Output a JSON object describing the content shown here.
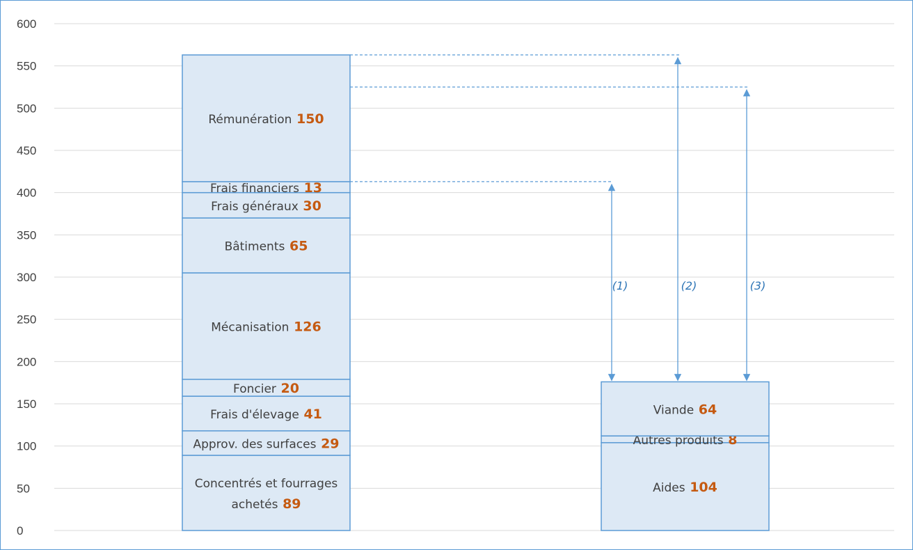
{
  "chart_data": {
    "type": "bar",
    "subtype": "stacked",
    "ylim": [
      0,
      600
    ],
    "yticks": [
      0,
      50,
      100,
      150,
      200,
      250,
      300,
      350,
      400,
      450,
      500,
      550,
      600
    ],
    "grid": true,
    "title": "",
    "xlabel": "",
    "ylabel": "",
    "colors": {
      "fill": "#dde9f5",
      "stroke": "#5b9bd5",
      "value": "#c55a11",
      "grid": "#d9d9d9",
      "arrow": "#5b9bd5"
    },
    "stacks": [
      {
        "segments": [
          {
            "label": [
              "Concentrés et fourrages",
              "achetés"
            ],
            "value": 89
          },
          {
            "label": [
              "Approv. des surfaces"
            ],
            "value": 29
          },
          {
            "label": [
              "Frais d'élevage"
            ],
            "value": 41
          },
          {
            "label": [
              "Foncier"
            ],
            "value": 20
          },
          {
            "label": [
              "Mécanisation"
            ],
            "value": 126
          },
          {
            "label": [
              "Bâtiments"
            ],
            "value": 65
          },
          {
            "label": [
              "Frais généraux"
            ],
            "value": 30
          },
          {
            "label": [
              "Frais financiers"
            ],
            "value": 13
          },
          {
            "label": [
              "Rémunération"
            ],
            "value": 150
          }
        ]
      },
      {
        "segments": [
          {
            "label": [
              "Aides"
            ],
            "value": 104
          },
          {
            "label": [
              "Autres produits"
            ],
            "value": 8
          },
          {
            "label": [
              "Viande"
            ],
            "value": 64
          }
        ]
      }
    ],
    "arrows": [
      {
        "label": "(1)",
        "from": 176,
        "to": 413
      },
      {
        "label": "(2)",
        "from": 176,
        "to": 563
      },
      {
        "label": "(3)",
        "from": 176,
        "to": 525
      }
    ]
  }
}
